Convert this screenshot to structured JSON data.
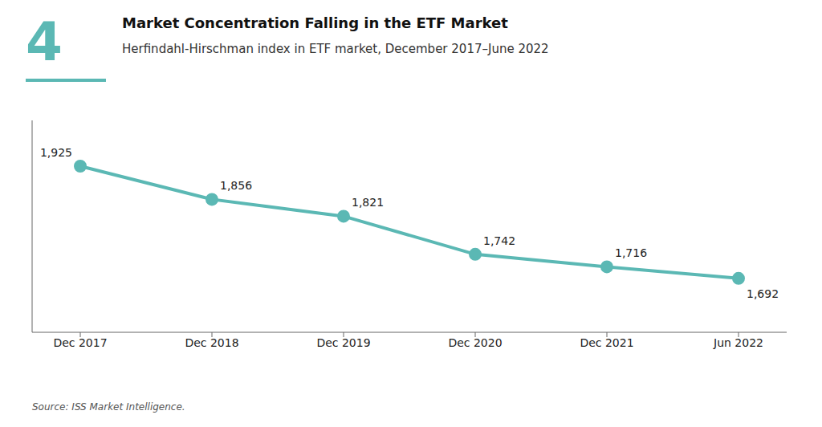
{
  "chart_data": {
    "type": "line",
    "title": "Market Concentration Falling in the ETF Market",
    "subtitle": "Herfindahl-Hirschman index in ETF market, December 2017–June 2022",
    "annotations": [
      "4",
      "Source: ISS Market Intelligence."
    ],
    "categories": [
      "Dec 2017",
      "Dec 2018",
      "Dec 2019",
      "Dec 2020",
      "Dec 2021",
      "Jun 2022"
    ],
    "values": [
      1925,
      1856,
      1821,
      1742,
      1716,
      1692
    ],
    "value_labels": [
      "1,925",
      "1,856",
      "1,821",
      "1,742",
      "1,716",
      "1,692"
    ],
    "color": "#5BB8B4",
    "ylim": [
      1580,
      2020
    ],
    "data_labels": true,
    "tick_labels": "x",
    "grid": false
  }
}
